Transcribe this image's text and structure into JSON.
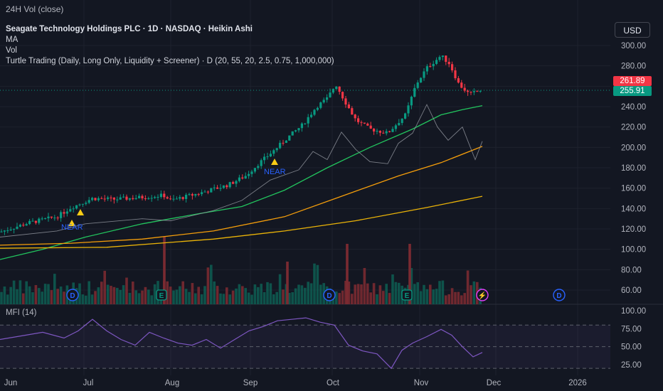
{
  "header": {
    "top_title": "24H Vol (close)",
    "symbol_line": "Seagate Technology Holdings PLC · 1D · NASDAQ · Heikin Ashi",
    "legend_ma": "MA",
    "legend_vol": "Vol",
    "legend_turtle": "Turtle Trading (Daily, Long Only, Liquidity + Screener) · D (20, 55, 20, 2.5, 0.75, 1,000,000)",
    "currency_button": "USD"
  },
  "price_tags": {
    "upper": "261.89",
    "lower": "255.91",
    "upper_color": "#f23645",
    "lower_color": "#089981"
  },
  "price_axis_labels": [
    "300.00",
    "280.00",
    "260.00",
    "240.00",
    "220.00",
    "200.00",
    "180.00",
    "160.00",
    "140.00",
    "120.00",
    "100.00",
    "80.00",
    "60.00"
  ],
  "mfi": {
    "title": "MFI (14)",
    "axis_labels": [
      "100.00",
      "75.00",
      "50.00",
      "25.00"
    ]
  },
  "time_axis_labels": [
    "Jun",
    "Jul",
    "Aug",
    "Sep",
    "Oct",
    "Nov",
    "Dec",
    "2026"
  ],
  "signals": {
    "near_label": "NEAR"
  },
  "event_markers": {
    "dividend": "D",
    "earnings": "E",
    "split": "⚡"
  },
  "colors": {
    "background": "#131722",
    "up": "#089981",
    "down": "#f23645",
    "ma_green": "#22c55e",
    "ma_orange": "#f59e0b",
    "ma_yellow": "#eab308",
    "mfi_line": "#7e57c2",
    "turtle_line": "#9598a1"
  },
  "chart_data": {
    "type": "candlestick",
    "price_axis": {
      "min": 60,
      "max": 300,
      "ticks": [
        300,
        280,
        260,
        240,
        220,
        200,
        180,
        160,
        140,
        120,
        100,
        80,
        60
      ]
    },
    "mfi_axis": {
      "min": 25,
      "max": 100,
      "ticks": [
        100,
        75,
        50,
        25
      ]
    },
    "x_labels": [
      "Jun",
      "Jul",
      "Aug",
      "Sep",
      "Oct",
      "Nov",
      "Dec",
      "2026"
    ],
    "last_price_upper": 261.89,
    "last_price_lower": 255.91
  }
}
